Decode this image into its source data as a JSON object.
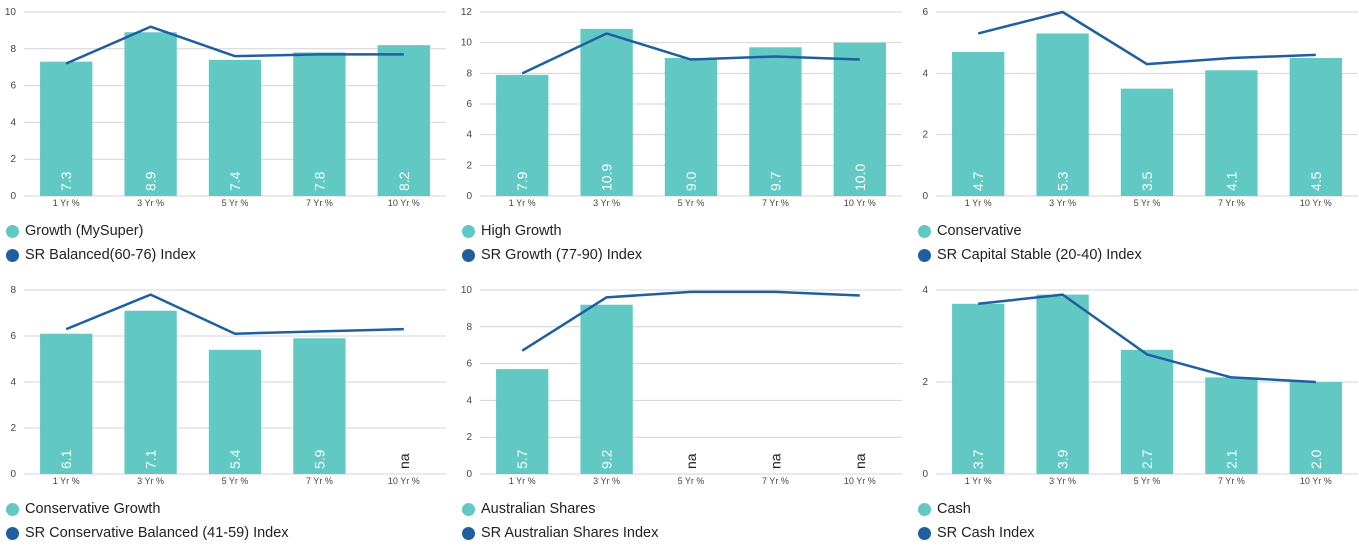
{
  "colors": {
    "bar": "#62c8c4",
    "line": "#1f5f9f",
    "grid": "#d4d4d4"
  },
  "chart_data": [
    {
      "type": "bar",
      "categories": [
        "1 Yr %",
        "3 Yr %",
        "5 Yr %",
        "7 Yr %",
        "10 Yr %"
      ],
      "series": [
        {
          "name": "Growth (MySuper)",
          "type": "bar",
          "values": [
            7.3,
            8.9,
            7.4,
            7.8,
            8.2
          ],
          "labels": [
            "7.3",
            "8.9",
            "7.4",
            "7.8",
            "8.2"
          ]
        },
        {
          "name": "SR Balanced(60-76) Index",
          "type": "line",
          "values": [
            7.2,
            9.2,
            7.6,
            7.7,
            7.7
          ]
        }
      ],
      "ylim": [
        0,
        10
      ],
      "yticks": [
        0,
        2,
        4,
        6,
        8,
        10
      ]
    },
    {
      "type": "bar",
      "categories": [
        "1 Yr %",
        "3 Yr %",
        "5 Yr %",
        "7 Yr %",
        "10 Yr %"
      ],
      "series": [
        {
          "name": "High Growth",
          "type": "bar",
          "values": [
            7.9,
            10.9,
            9.0,
            9.7,
            10.0
          ],
          "labels": [
            "7.9",
            "10.9",
            "9.0",
            "9.7",
            "10.0"
          ]
        },
        {
          "name": "SR Growth (77-90) Index",
          "type": "line",
          "values": [
            8.0,
            10.6,
            8.9,
            9.1,
            8.9
          ]
        }
      ],
      "ylim": [
        0,
        12
      ],
      "yticks": [
        0,
        2,
        4,
        6,
        8,
        10,
        12
      ]
    },
    {
      "type": "bar",
      "categories": [
        "1 Yr %",
        "3 Yr %",
        "5 Yr %",
        "7 Yr %",
        "10 Yr %"
      ],
      "series": [
        {
          "name": "Conservative",
          "type": "bar",
          "values": [
            4.7,
            5.3,
            3.5,
            4.1,
            4.5
          ],
          "labels": [
            "4.7",
            "5.3",
            "3.5",
            "4.1",
            "4.5"
          ]
        },
        {
          "name": "SR Capital Stable (20-40) Index",
          "type": "line",
          "values": [
            5.3,
            6.0,
            4.3,
            4.5,
            4.6
          ]
        }
      ],
      "ylim": [
        0,
        6
      ],
      "yticks": [
        0,
        2,
        4,
        6
      ]
    },
    {
      "type": "bar",
      "categories": [
        "1 Yr %",
        "3 Yr %",
        "5 Yr %",
        "7 Yr %",
        "10 Yr %"
      ],
      "series": [
        {
          "name": "Conservative Growth",
          "type": "bar",
          "values": [
            6.1,
            7.1,
            5.4,
            5.9,
            null
          ],
          "labels": [
            "6.1",
            "7.1",
            "5.4",
            "5.9",
            "na"
          ]
        },
        {
          "name": "SR Conservative Balanced (41-59) Index",
          "type": "line",
          "values": [
            6.3,
            7.8,
            6.1,
            6.2,
            6.3
          ]
        }
      ],
      "ylim": [
        0,
        8
      ],
      "yticks": [
        0,
        2,
        4,
        6,
        8
      ]
    },
    {
      "type": "bar",
      "categories": [
        "1 Yr %",
        "3 Yr %",
        "5 Yr %",
        "7 Yr %",
        "10 Yr %"
      ],
      "series": [
        {
          "name": "Australian Shares",
          "type": "bar",
          "values": [
            5.7,
            9.2,
            null,
            null,
            null
          ],
          "labels": [
            "5.7",
            "9.2",
            "na",
            "na",
            "na"
          ]
        },
        {
          "name": "SR Australian Shares Index",
          "type": "line",
          "values": [
            6.7,
            9.6,
            9.9,
            9.9,
            9.7
          ]
        }
      ],
      "ylim": [
        0,
        10
      ],
      "yticks": [
        0,
        2,
        4,
        6,
        8,
        10
      ]
    },
    {
      "type": "bar",
      "categories": [
        "1 Yr %",
        "3 Yr %",
        "5 Yr %",
        "7 Yr %",
        "10 Yr %"
      ],
      "series": [
        {
          "name": "Cash",
          "type": "bar",
          "values": [
            3.7,
            3.9,
            2.7,
            2.1,
            2.0
          ],
          "labels": [
            "3.7",
            "3.9",
            "2.7",
            "2.1",
            "2.0"
          ]
        },
        {
          "name": "SR Cash Index",
          "type": "line",
          "values": [
            3.7,
            3.9,
            2.6,
            2.1,
            2.0
          ]
        }
      ],
      "ylim": [
        0,
        4
      ],
      "yticks": [
        0,
        2,
        4
      ]
    }
  ]
}
